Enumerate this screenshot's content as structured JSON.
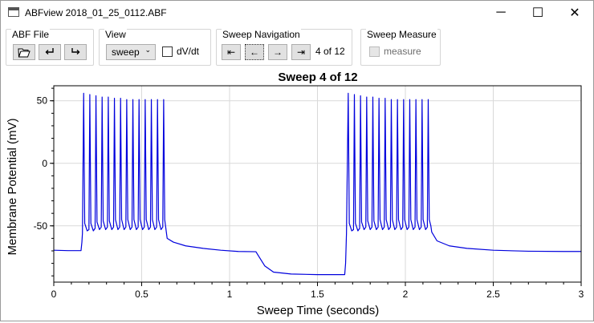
{
  "window": {
    "title": "ABFview 2018_01_25_0112.ABF",
    "minimize_glyph": "─",
    "maximize_glyph": "☐",
    "close_glyph": "✕"
  },
  "toolbar": {
    "abf_file": {
      "label": "ABF File",
      "open_icon": "folder-open-icon",
      "prev_icon": "return-arrow-icon",
      "next_icon": "forward-arrow-icon"
    },
    "view": {
      "label": "View",
      "mode_value": "sweep",
      "dvdt_label": "dV/dt",
      "dvdt_checked": false
    },
    "sweep_navigation": {
      "label": "Sweep Navigation",
      "first_glyph": "⇤",
      "prev_glyph": "←",
      "next_glyph": "→",
      "last_glyph": "⇥",
      "counter_text": "4 of 12"
    },
    "sweep_measure": {
      "label": "Sweep Measure",
      "measure_label": "measure",
      "measure_checked": false,
      "measure_enabled": false
    }
  },
  "chart_data": {
    "type": "line",
    "title": "Sweep 4 of 12",
    "xlabel": "Sweep Time (seconds)",
    "ylabel": "Membrane Potential (mV)",
    "xlim": [
      0,
      3
    ],
    "ylim": [
      -95,
      62
    ],
    "xticks": [
      "0",
      "0.5",
      "1",
      "1.5",
      "2",
      "2.5",
      "3"
    ],
    "yticks": [
      "50",
      "0",
      "-50"
    ],
    "grid": true,
    "line_color": "#0000dd",
    "series": [
      {
        "points": [
          [
            0,
            -69.5
          ],
          [
            0.08,
            -69.8
          ],
          [
            0.155,
            -69.8
          ],
          [
            0.16,
            -63
          ],
          [
            0.163,
            -56
          ],
          [
            0.17,
            56
          ],
          [
            0.176,
            -48
          ],
          [
            0.19,
            -54
          ],
          [
            0.2,
            -53
          ],
          [
            0.205,
            55
          ],
          [
            0.211,
            -48
          ],
          [
            0.225,
            -54
          ],
          [
            0.235,
            -52
          ],
          [
            0.24,
            54
          ],
          [
            0.246,
            -47
          ],
          [
            0.26,
            -53
          ],
          [
            0.27,
            -51
          ],
          [
            0.275,
            53
          ],
          [
            0.281,
            -46
          ],
          [
            0.295,
            -53
          ],
          [
            0.305,
            -51
          ],
          [
            0.31,
            53
          ],
          [
            0.316,
            -46
          ],
          [
            0.33,
            -53
          ],
          [
            0.34,
            -51
          ],
          [
            0.345,
            52
          ],
          [
            0.351,
            -45
          ],
          [
            0.365,
            -53
          ],
          [
            0.375,
            -51
          ],
          [
            0.38,
            52
          ],
          [
            0.386,
            -45
          ],
          [
            0.4,
            -53
          ],
          [
            0.41,
            -51
          ],
          [
            0.415,
            51
          ],
          [
            0.421,
            -45
          ],
          [
            0.435,
            -53
          ],
          [
            0.445,
            -51
          ],
          [
            0.45,
            51
          ],
          [
            0.456,
            -45
          ],
          [
            0.47,
            -53
          ],
          [
            0.48,
            -51
          ],
          [
            0.485,
            51
          ],
          [
            0.491,
            -45
          ],
          [
            0.505,
            -53
          ],
          [
            0.515,
            -51
          ],
          [
            0.52,
            51
          ],
          [
            0.526,
            -45
          ],
          [
            0.54,
            -53
          ],
          [
            0.55,
            -51
          ],
          [
            0.555,
            51
          ],
          [
            0.561,
            -45
          ],
          [
            0.575,
            -53
          ],
          [
            0.585,
            -51
          ],
          [
            0.59,
            51
          ],
          [
            0.596,
            -45
          ],
          [
            0.61,
            -53
          ],
          [
            0.62,
            -51
          ],
          [
            0.625,
            51
          ],
          [
            0.631,
            -45
          ],
          [
            0.645,
            -60
          ],
          [
            0.68,
            -63
          ],
          [
            0.75,
            -66
          ],
          [
            0.85,
            -68
          ],
          [
            0.95,
            -69.5
          ],
          [
            1.05,
            -70.5
          ],
          [
            1.15,
            -70.7
          ],
          [
            1.16,
            -73
          ],
          [
            1.2,
            -82
          ],
          [
            1.25,
            -87
          ],
          [
            1.35,
            -88.5
          ],
          [
            1.5,
            -89
          ],
          [
            1.655,
            -89
          ],
          [
            1.66,
            -80
          ],
          [
            1.665,
            -56
          ],
          [
            1.675,
            56
          ],
          [
            1.681,
            -48
          ],
          [
            1.695,
            -54
          ],
          [
            1.705,
            -53
          ],
          [
            1.71,
            55
          ],
          [
            1.716,
            -48
          ],
          [
            1.73,
            -54
          ],
          [
            1.74,
            -52
          ],
          [
            1.745,
            54
          ],
          [
            1.751,
            -47
          ],
          [
            1.765,
            -53
          ],
          [
            1.775,
            -51
          ],
          [
            1.78,
            53
          ],
          [
            1.786,
            -46
          ],
          [
            1.8,
            -53
          ],
          [
            1.81,
            -51
          ],
          [
            1.815,
            53
          ],
          [
            1.821,
            -46
          ],
          [
            1.835,
            -53
          ],
          [
            1.845,
            -51
          ],
          [
            1.85,
            52
          ],
          [
            1.856,
            -45
          ],
          [
            1.87,
            -53
          ],
          [
            1.88,
            -51
          ],
          [
            1.885,
            52
          ],
          [
            1.891,
            -45
          ],
          [
            1.905,
            -53
          ],
          [
            1.915,
            -51
          ],
          [
            1.92,
            51
          ],
          [
            1.926,
            -45
          ],
          [
            1.94,
            -53
          ],
          [
            1.95,
            -51
          ],
          [
            1.955,
            51
          ],
          [
            1.961,
            -45
          ],
          [
            1.975,
            -53
          ],
          [
            1.985,
            -51
          ],
          [
            1.99,
            51
          ],
          [
            1.996,
            -45
          ],
          [
            2.01,
            -53
          ],
          [
            2.02,
            -51
          ],
          [
            2.025,
            51
          ],
          [
            2.031,
            -45
          ],
          [
            2.045,
            -53
          ],
          [
            2.055,
            -51
          ],
          [
            2.06,
            51
          ],
          [
            2.066,
            -45
          ],
          [
            2.08,
            -53
          ],
          [
            2.09,
            -51
          ],
          [
            2.095,
            51
          ],
          [
            2.101,
            -45
          ],
          [
            2.115,
            -53
          ],
          [
            2.125,
            -51
          ],
          [
            2.13,
            51
          ],
          [
            2.136,
            -45
          ],
          [
            2.145,
            -50
          ],
          [
            2.15,
            -55
          ],
          [
            2.18,
            -62
          ],
          [
            2.25,
            -66
          ],
          [
            2.35,
            -68
          ],
          [
            2.5,
            -69.5
          ],
          [
            2.7,
            -70.3
          ],
          [
            2.9,
            -70.5
          ],
          [
            3.0,
            -70.5
          ]
        ]
      }
    ]
  }
}
